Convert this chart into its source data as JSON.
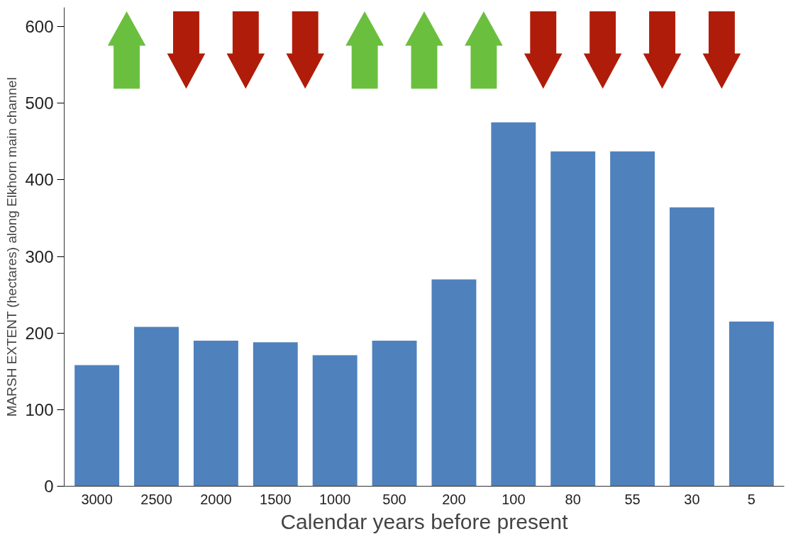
{
  "chart_data": {
    "type": "bar",
    "xlabel": "Calendar years before present",
    "ylabel": "MARSH EXTENT (hectares) along Elkhorn main channel",
    "categories": [
      "3000",
      "2500",
      "2000",
      "1500",
      "1000",
      "500",
      "200",
      "100",
      "80",
      "55",
      "30",
      "5"
    ],
    "values": [
      158,
      208,
      190,
      188,
      171,
      190,
      270,
      475,
      437,
      437,
      364,
      215
    ],
    "color": "#4f81bd",
    "ylim": [
      0,
      625
    ],
    "yticks": [
      0,
      100,
      200,
      300,
      400,
      500,
      600
    ],
    "grid": false
  }
}
